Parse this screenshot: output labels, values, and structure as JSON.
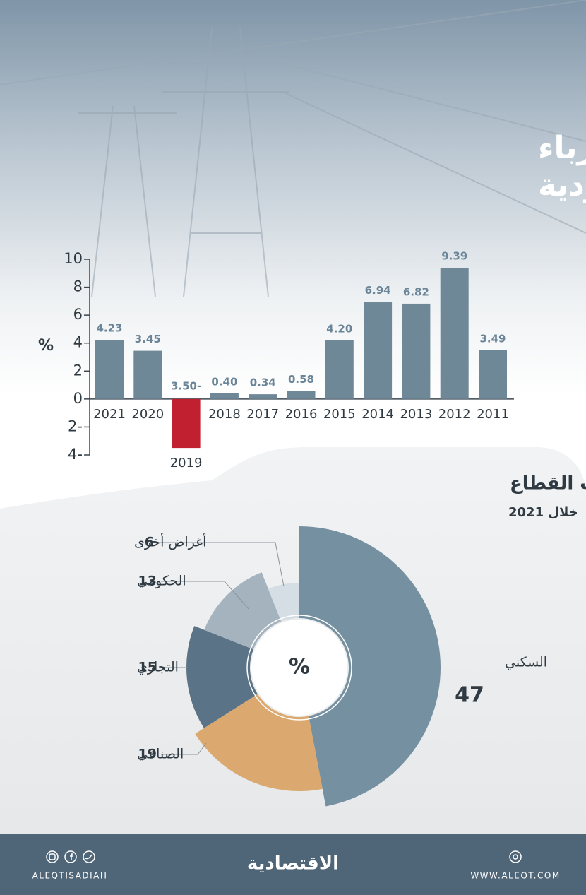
{
  "title": [
    "نمو استهلاك الكهرباء",
    "في السعودية"
  ],
  "chart_data": [
    {
      "type": "bar",
      "y_label": "%",
      "categories": [
        "2021",
        "2020",
        "2019",
        "2018",
        "2017",
        "2016",
        "2015",
        "2014",
        "2013",
        "2012",
        "2011"
      ],
      "values": [
        4.23,
        3.45,
        -3.5,
        0.4,
        0.34,
        0.58,
        4.2,
        6.94,
        6.82,
        9.39,
        3.49
      ],
      "value_labels": [
        "4.23",
        "3.45",
        "3.50-",
        "0.40",
        "0.34",
        "0.58",
        "4.20",
        "6.94",
        "6.82",
        "9.39",
        "3.49"
      ],
      "color": "#6f8898",
      "negative_color": "#c0202f",
      "ylim": [
        -4,
        10
      ],
      "yticks": [
        {
          "value": -4,
          "label": "4-"
        },
        {
          "value": -2,
          "label": "2-"
        },
        0,
        2,
        4,
        6,
        8,
        10
      ]
    },
    {
      "type": "pie",
      "title": "الاستهلاك حسب القطاع",
      "subtitle": "خلال 2021",
      "center_label": "%",
      "categories": [
        "السكني",
        "الصناعي",
        "التجاري",
        "الحكومي",
        "أغراض أخرى"
      ],
      "values": [
        47,
        19,
        15,
        13,
        6
      ],
      "colors": [
        "#7590a0",
        "#dba96f",
        "#5a7386",
        "#a5b3bf",
        "#d5dde5"
      ]
    }
  ],
  "footer": {
    "handle": "ALEQTISADIAH",
    "logo": "الاقتصادية",
    "site": "WWW.ALEQT.COM"
  }
}
